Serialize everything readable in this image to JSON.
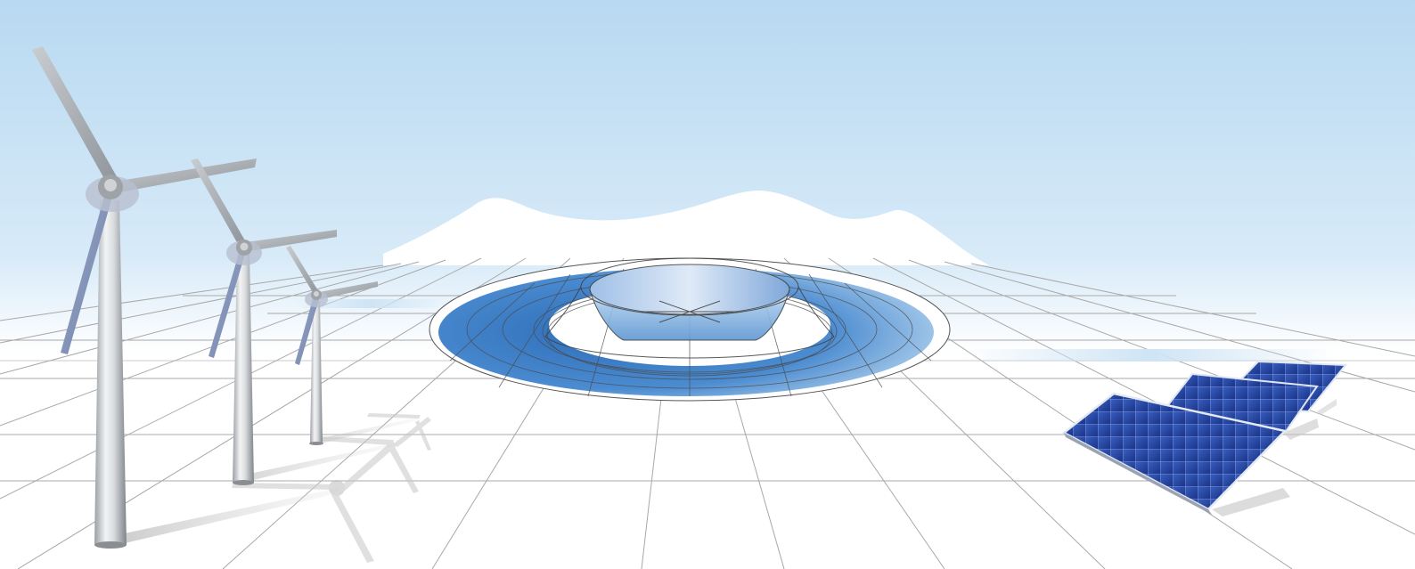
{
  "scene": {
    "sky_top_color": "#b9dbf2",
    "sky_bottom_color": "#ffffff",
    "ground_color": "#ffffff",
    "grid_color": "#a9a9a9",
    "mountain_color": "#ffffff",
    "reservoir_color": "#3f7fc6",
    "reservoir_light_color": "#cfe6f6",
    "turbine_color": "#d6d9dc",
    "solar_panel_color": "#2446a6",
    "elements": [
      {
        "name": "wind-turbine",
        "icon": "wind-turbine-icon",
        "count": 3
      },
      {
        "name": "pumped-storage-reservoir",
        "icon": "reservoir-icon",
        "count": 1
      },
      {
        "name": "solar-panel",
        "icon": "solar-panel-icon",
        "count": 3
      },
      {
        "name": "mountain-range",
        "icon": "mountain-icon",
        "count": 1
      }
    ]
  }
}
